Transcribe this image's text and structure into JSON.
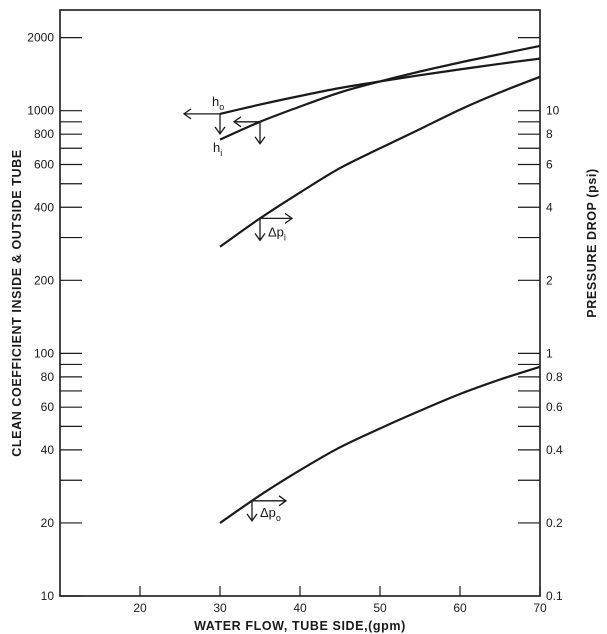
{
  "chart_data": {
    "type": "line",
    "xlabel": "WATER FLOW, TUBE SIDE,(gpm)",
    "ylabel_left": "CLEAN COEFFICIENT INSIDE & OUTSIDE TUBE",
    "ylabel_right": "PRESSURE DROP (psi)",
    "xlim": [
      10,
      70
    ],
    "ylim_left": [
      10,
      2600
    ],
    "ylim_right": [
      0.1,
      26
    ],
    "yscale": "log",
    "grid": false,
    "x_ticks": [
      20,
      30,
      40,
      50,
      60,
      70
    ],
    "x_tick_labels": [
      "20",
      "30",
      "40",
      "50",
      "60",
      "70"
    ],
    "y_left_ticks": [
      10,
      20,
      30,
      40,
      50,
      60,
      70,
      80,
      90,
      100,
      200,
      300,
      400,
      500,
      600,
      700,
      800,
      900,
      1000,
      2000
    ],
    "y_left_tick_labels": [
      {
        "value": 10,
        "label": "10"
      },
      {
        "value": 20,
        "label": "20"
      },
      {
        "value": 40,
        "label": "40"
      },
      {
        "value": 60,
        "label": "60"
      },
      {
        "value": 80,
        "label": "80"
      },
      {
        "value": 100,
        "label": "100"
      },
      {
        "value": 200,
        "label": "200"
      },
      {
        "value": 400,
        "label": "400"
      },
      {
        "value": 600,
        "label": "600"
      },
      {
        "value": 800,
        "label": "800"
      },
      {
        "value": 1000,
        "label": "1000"
      },
      {
        "value": 2000,
        "label": "2000"
      }
    ],
    "y_right_ticks": [
      0.2,
      0.3,
      0.4,
      0.5,
      0.6,
      0.7,
      0.8,
      0.9,
      1,
      2,
      3,
      4,
      5,
      6,
      7,
      8,
      9,
      10,
      20
    ],
    "y_right_tick_labels": [
      {
        "value": 0.1,
        "label": "0.1"
      },
      {
        "value": 0.2,
        "label": "0.2"
      },
      {
        "value": 0.4,
        "label": "0.4"
      },
      {
        "value": 0.6,
        "label": "0.6"
      },
      {
        "value": 0.8,
        "label": "0.8"
      },
      {
        "value": 1,
        "label": "1"
      },
      {
        "value": 2,
        "label": "2"
      },
      {
        "value": 4,
        "label": "4"
      },
      {
        "value": 6,
        "label": "6"
      },
      {
        "value": 8,
        "label": "8"
      },
      {
        "value": 10,
        "label": "10"
      }
    ],
    "series": [
      {
        "name": "h_o",
        "axis": "left",
        "x": [
          30,
          35,
          40,
          45,
          50,
          55,
          60,
          65,
          70
        ],
        "y": [
          970,
          1060,
          1150,
          1240,
          1320,
          1400,
          1480,
          1560,
          1640
        ]
      },
      {
        "name": "h_i",
        "axis": "left",
        "x": [
          30,
          35,
          40,
          45,
          50,
          55,
          60,
          65,
          70
        ],
        "y": [
          760,
          900,
          1040,
          1190,
          1320,
          1450,
          1580,
          1710,
          1850
        ]
      },
      {
        "name": "Δp_i",
        "axis": "right",
        "x": [
          30,
          35,
          40,
          45,
          50,
          55,
          60,
          65,
          70
        ],
        "y": [
          2.75,
          3.6,
          4.6,
          5.8,
          7.0,
          8.4,
          10.1,
          11.9,
          13.8
        ]
      },
      {
        "name": "Δp_o",
        "axis": "right",
        "x": [
          30,
          35,
          40,
          45,
          50,
          55,
          60,
          65,
          70
        ],
        "y": [
          0.2,
          0.26,
          0.33,
          0.41,
          0.49,
          0.58,
          0.68,
          0.78,
          0.88
        ]
      }
    ],
    "annotations": [
      {
        "main": "h",
        "sub": "o",
        "series": "h_o",
        "x": 30
      },
      {
        "main": "h",
        "sub": "i",
        "series": "h_i",
        "x": 30
      },
      {
        "main": "Δp",
        "sub": "i",
        "series": "Δp_i",
        "x": 35
      },
      {
        "main": "Δp",
        "sub": "o",
        "series": "Δp_o",
        "x": 34
      }
    ]
  }
}
